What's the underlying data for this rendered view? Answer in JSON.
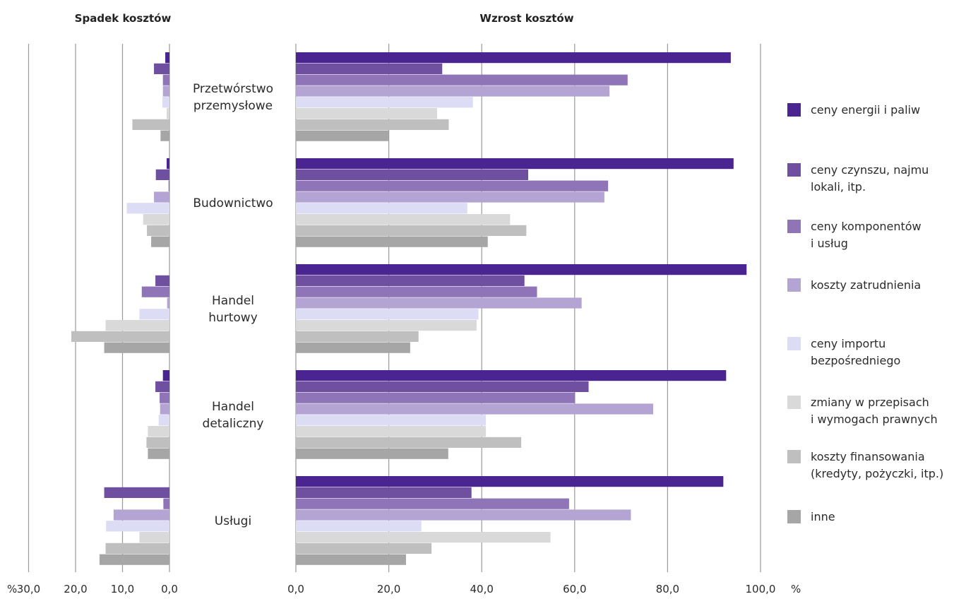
{
  "chart_data": [
    {
      "type": "bar",
      "orientation": "horizontal",
      "direction": "leftward",
      "title": "Spadek kosztów",
      "unit": "%",
      "xlim": [
        30,
        0
      ],
      "ticks": [
        "30,0",
        "20,0",
        "10,0",
        "0,0"
      ],
      "categories": [
        "Przetwórstwo przemysłowe",
        "Budownictwo",
        "Handel hurtowy",
        "Handel detaliczny",
        "Usługi"
      ],
      "series": [
        {
          "name": "ceny energii i paliw",
          "color": "#4a2591",
          "values": [
            0.9,
            0.6,
            0.0,
            1.4,
            0.0
          ]
        },
        {
          "name": "ceny czynszu, najmu lokali, itp.",
          "color": "#6f4fa0",
          "values": [
            3.3,
            2.9,
            3.0,
            3.0,
            13.9
          ]
        },
        {
          "name": "ceny komponentów i usług",
          "color": "#8f74b8",
          "values": [
            1.4,
            0.2,
            5.9,
            2.1,
            1.3
          ]
        },
        {
          "name": "koszty zatrudnienia",
          "color": "#b4a4d3",
          "values": [
            1.4,
            3.3,
            0.5,
            2.0,
            11.9
          ]
        },
        {
          "name": "ceny importu bezpośredniego",
          "color": "#dcdcf5",
          "values": [
            1.5,
            9.1,
            6.4,
            2.3,
            13.5
          ]
        },
        {
          "name": "zmiany w przepisach i wymogach prawnych",
          "color": "#d9d9d9",
          "values": [
            0.6,
            5.6,
            13.6,
            4.6,
            6.4
          ]
        },
        {
          "name": "koszty finansowania (kredyty, pożyczki, itp.)",
          "color": "#bfbfbf",
          "values": [
            7.9,
            4.8,
            20.9,
            4.9,
            13.6
          ]
        },
        {
          "name": "inne",
          "color": "#a6a6a6",
          "values": [
            1.9,
            3.9,
            13.9,
            4.6,
            14.9
          ]
        }
      ]
    },
    {
      "type": "bar",
      "orientation": "horizontal",
      "direction": "rightward",
      "title": "Wzrost kosztów",
      "unit": "%",
      "xlim": [
        0,
        100
      ],
      "ticks": [
        "0,0",
        "20,0",
        "40,0",
        "60,0",
        "80,0",
        "100,0"
      ],
      "categories": [
        "Przetwórstwo przemysłowe",
        "Budownictwo",
        "Handel hurtowy",
        "Handel detaliczny",
        "Usługi"
      ],
      "series": [
        {
          "name": "ceny energii i paliw",
          "color": "#4a2591",
          "values": [
            93.6,
            94.2,
            97.0,
            92.6,
            92.0
          ]
        },
        {
          "name": "ceny czynszu, najmu lokali, itp.",
          "color": "#6f4fa0",
          "values": [
            31.5,
            50.0,
            49.2,
            63.0,
            37.8
          ]
        },
        {
          "name": "ceny komponentów i usług",
          "color": "#8f74b8",
          "values": [
            71.4,
            67.2,
            51.9,
            60.1,
            58.8
          ]
        },
        {
          "name": "koszty zatrudnienia",
          "color": "#b4a4d3",
          "values": [
            67.5,
            66.4,
            61.5,
            76.9,
            72.1
          ]
        },
        {
          "name": "ceny importu bezpośredniego",
          "color": "#dcdcf5",
          "values": [
            38.1,
            36.9,
            39.3,
            40.9,
            27.0
          ]
        },
        {
          "name": "zmiany w przepisach i wymogach prawnych",
          "color": "#d9d9d9",
          "values": [
            30.4,
            46.1,
            38.9,
            40.9,
            54.8
          ]
        },
        {
          "name": "koszty finansowania (kredyty, pożyczki, itp.)",
          "color": "#bfbfbf",
          "values": [
            32.9,
            49.6,
            26.4,
            48.5,
            29.2
          ]
        },
        {
          "name": "inne",
          "color": "#a6a6a6",
          "values": [
            19.9,
            41.3,
            24.6,
            32.8,
            23.7
          ]
        }
      ]
    }
  ],
  "category_labels": [
    [
      "Przetwórstwo",
      "przemysłowe"
    ],
    [
      "Budownictwo"
    ],
    [
      "Handel",
      "hurtowy"
    ],
    [
      "Handel",
      "detaliczny"
    ],
    [
      "Usługi"
    ]
  ],
  "legend": {
    "placement": "right",
    "items": [
      {
        "lines": [
          "ceny energii i paliw"
        ],
        "color": "#4a2591"
      },
      {
        "lines": [
          "ceny czynszu, najmu",
          "lokali, itp."
        ],
        "color": "#6f4fa0"
      },
      {
        "lines": [
          "ceny komponentów",
          "i usług"
        ],
        "color": "#8f74b8"
      },
      {
        "lines": [
          "koszty zatrudnienia"
        ],
        "color": "#b4a4d3"
      },
      {
        "lines": [
          "ceny importu",
          "bezpośredniego"
        ],
        "color": "#dcdcf5"
      },
      {
        "lines": [
          "zmiany w przepisach",
          "i wymogach prawnych"
        ],
        "color": "#d9d9d9"
      },
      {
        "lines": [
          "koszty finansowania",
          "(kredyty, pożyczki, itp.)"
        ],
        "color": "#bfbfbf"
      },
      {
        "lines": [
          "inne"
        ],
        "color": "#a6a6a6"
      }
    ]
  },
  "axis_unit_label": "%",
  "grid": true
}
